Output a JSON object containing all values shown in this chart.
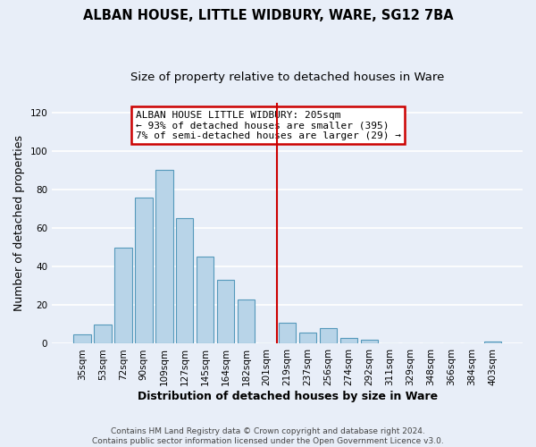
{
  "title": "ALBAN HOUSE, LITTLE WIDBURY, WARE, SG12 7BA",
  "subtitle": "Size of property relative to detached houses in Ware",
  "xlabel": "Distribution of detached houses by size in Ware",
  "ylabel": "Number of detached properties",
  "bar_labels": [
    "35sqm",
    "53sqm",
    "72sqm",
    "90sqm",
    "109sqm",
    "127sqm",
    "145sqm",
    "164sqm",
    "182sqm",
    "201sqm",
    "219sqm",
    "237sqm",
    "256sqm",
    "274sqm",
    "292sqm",
    "311sqm",
    "329sqm",
    "348sqm",
    "366sqm",
    "384sqm",
    "403sqm"
  ],
  "bar_values": [
    5,
    10,
    50,
    76,
    90,
    65,
    45,
    33,
    23,
    0,
    11,
    6,
    8,
    3,
    2,
    0,
    0,
    0,
    0,
    0,
    1
  ],
  "bar_color": "#b8d4e8",
  "bar_edge_color": "#5599bb",
  "annotation_box_text": "ALBAN HOUSE LITTLE WIDBURY: 205sqm\n← 93% of detached houses are smaller (395)\n7% of semi-detached houses are larger (29) →",
  "annotation_box_facecolor": "#ffffff",
  "annotation_box_edgecolor": "#cc0000",
  "vline_color": "#cc0000",
  "ylim": [
    0,
    125
  ],
  "yticks": [
    0,
    20,
    40,
    60,
    80,
    100,
    120
  ],
  "footer_text": "Contains HM Land Registry data © Crown copyright and database right 2024.\nContains public sector information licensed under the Open Government Licence v3.0.",
  "bg_color": "#e8eef8",
  "plot_bg_color": "#e8eef8",
  "grid_color": "#ffffff",
  "title_fontsize": 10.5,
  "subtitle_fontsize": 9.5,
  "axis_label_fontsize": 9,
  "tick_fontsize": 7.5,
  "footer_fontsize": 6.5
}
